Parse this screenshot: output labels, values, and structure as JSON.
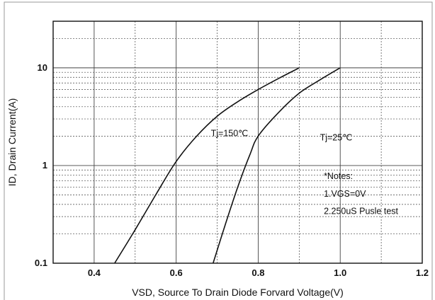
{
  "chart_data": {
    "type": "line",
    "title": "",
    "xlabel": "VSD, Source To Drain Diode Forvard Voltage(V)",
    "ylabel": "ID, Drain Current(A)",
    "xlim": [
      0.3,
      1.2
    ],
    "ylim": [
      0.1,
      30
    ],
    "yscale": "log",
    "grid": true,
    "x_ticks": [
      0.4,
      0.6,
      0.8,
      1.0,
      1.2
    ],
    "x_tick_labels": [
      "0.4",
      "0.6",
      "0.8",
      "1.0",
      "1.2"
    ],
    "y_ticks": [
      0.1,
      1,
      10
    ],
    "y_tick_labels": [
      "0.1",
      "1",
      "10"
    ],
    "series": [
      {
        "name": "Tj=150℃",
        "x": [
          0.45,
          0.5,
          0.55,
          0.6,
          0.65,
          0.7,
          0.75,
          0.8,
          0.85,
          0.9
        ],
        "y": [
          0.1,
          0.22,
          0.5,
          1.1,
          2.0,
          3.2,
          4.5,
          6.0,
          7.8,
          10
        ]
      },
      {
        "name": "Tj=25℃",
        "x": [
          0.69,
          0.72,
          0.75,
          0.78,
          0.8,
          0.85,
          0.9,
          0.95,
          1.0
        ],
        "y": [
          0.1,
          0.25,
          0.6,
          1.3,
          2.0,
          3.5,
          5.5,
          7.5,
          10
        ]
      }
    ],
    "annotations": [
      {
        "text": "Tj=150℃",
        "x": 0.73,
        "y": 2.0
      },
      {
        "text": "Tj=25℃",
        "x": 0.99,
        "y": 1.8
      },
      {
        "text": "*Notes:",
        "x": 0.96,
        "y": 0.73
      },
      {
        "text": "1.VGS=0V",
        "x": 0.96,
        "y": 0.48
      },
      {
        "text": "2.250uS Pusle test",
        "x": 0.96,
        "y": 0.32
      }
    ],
    "colors": {
      "line": "#111111",
      "grid": "#444444",
      "background": "#ffffff"
    }
  }
}
